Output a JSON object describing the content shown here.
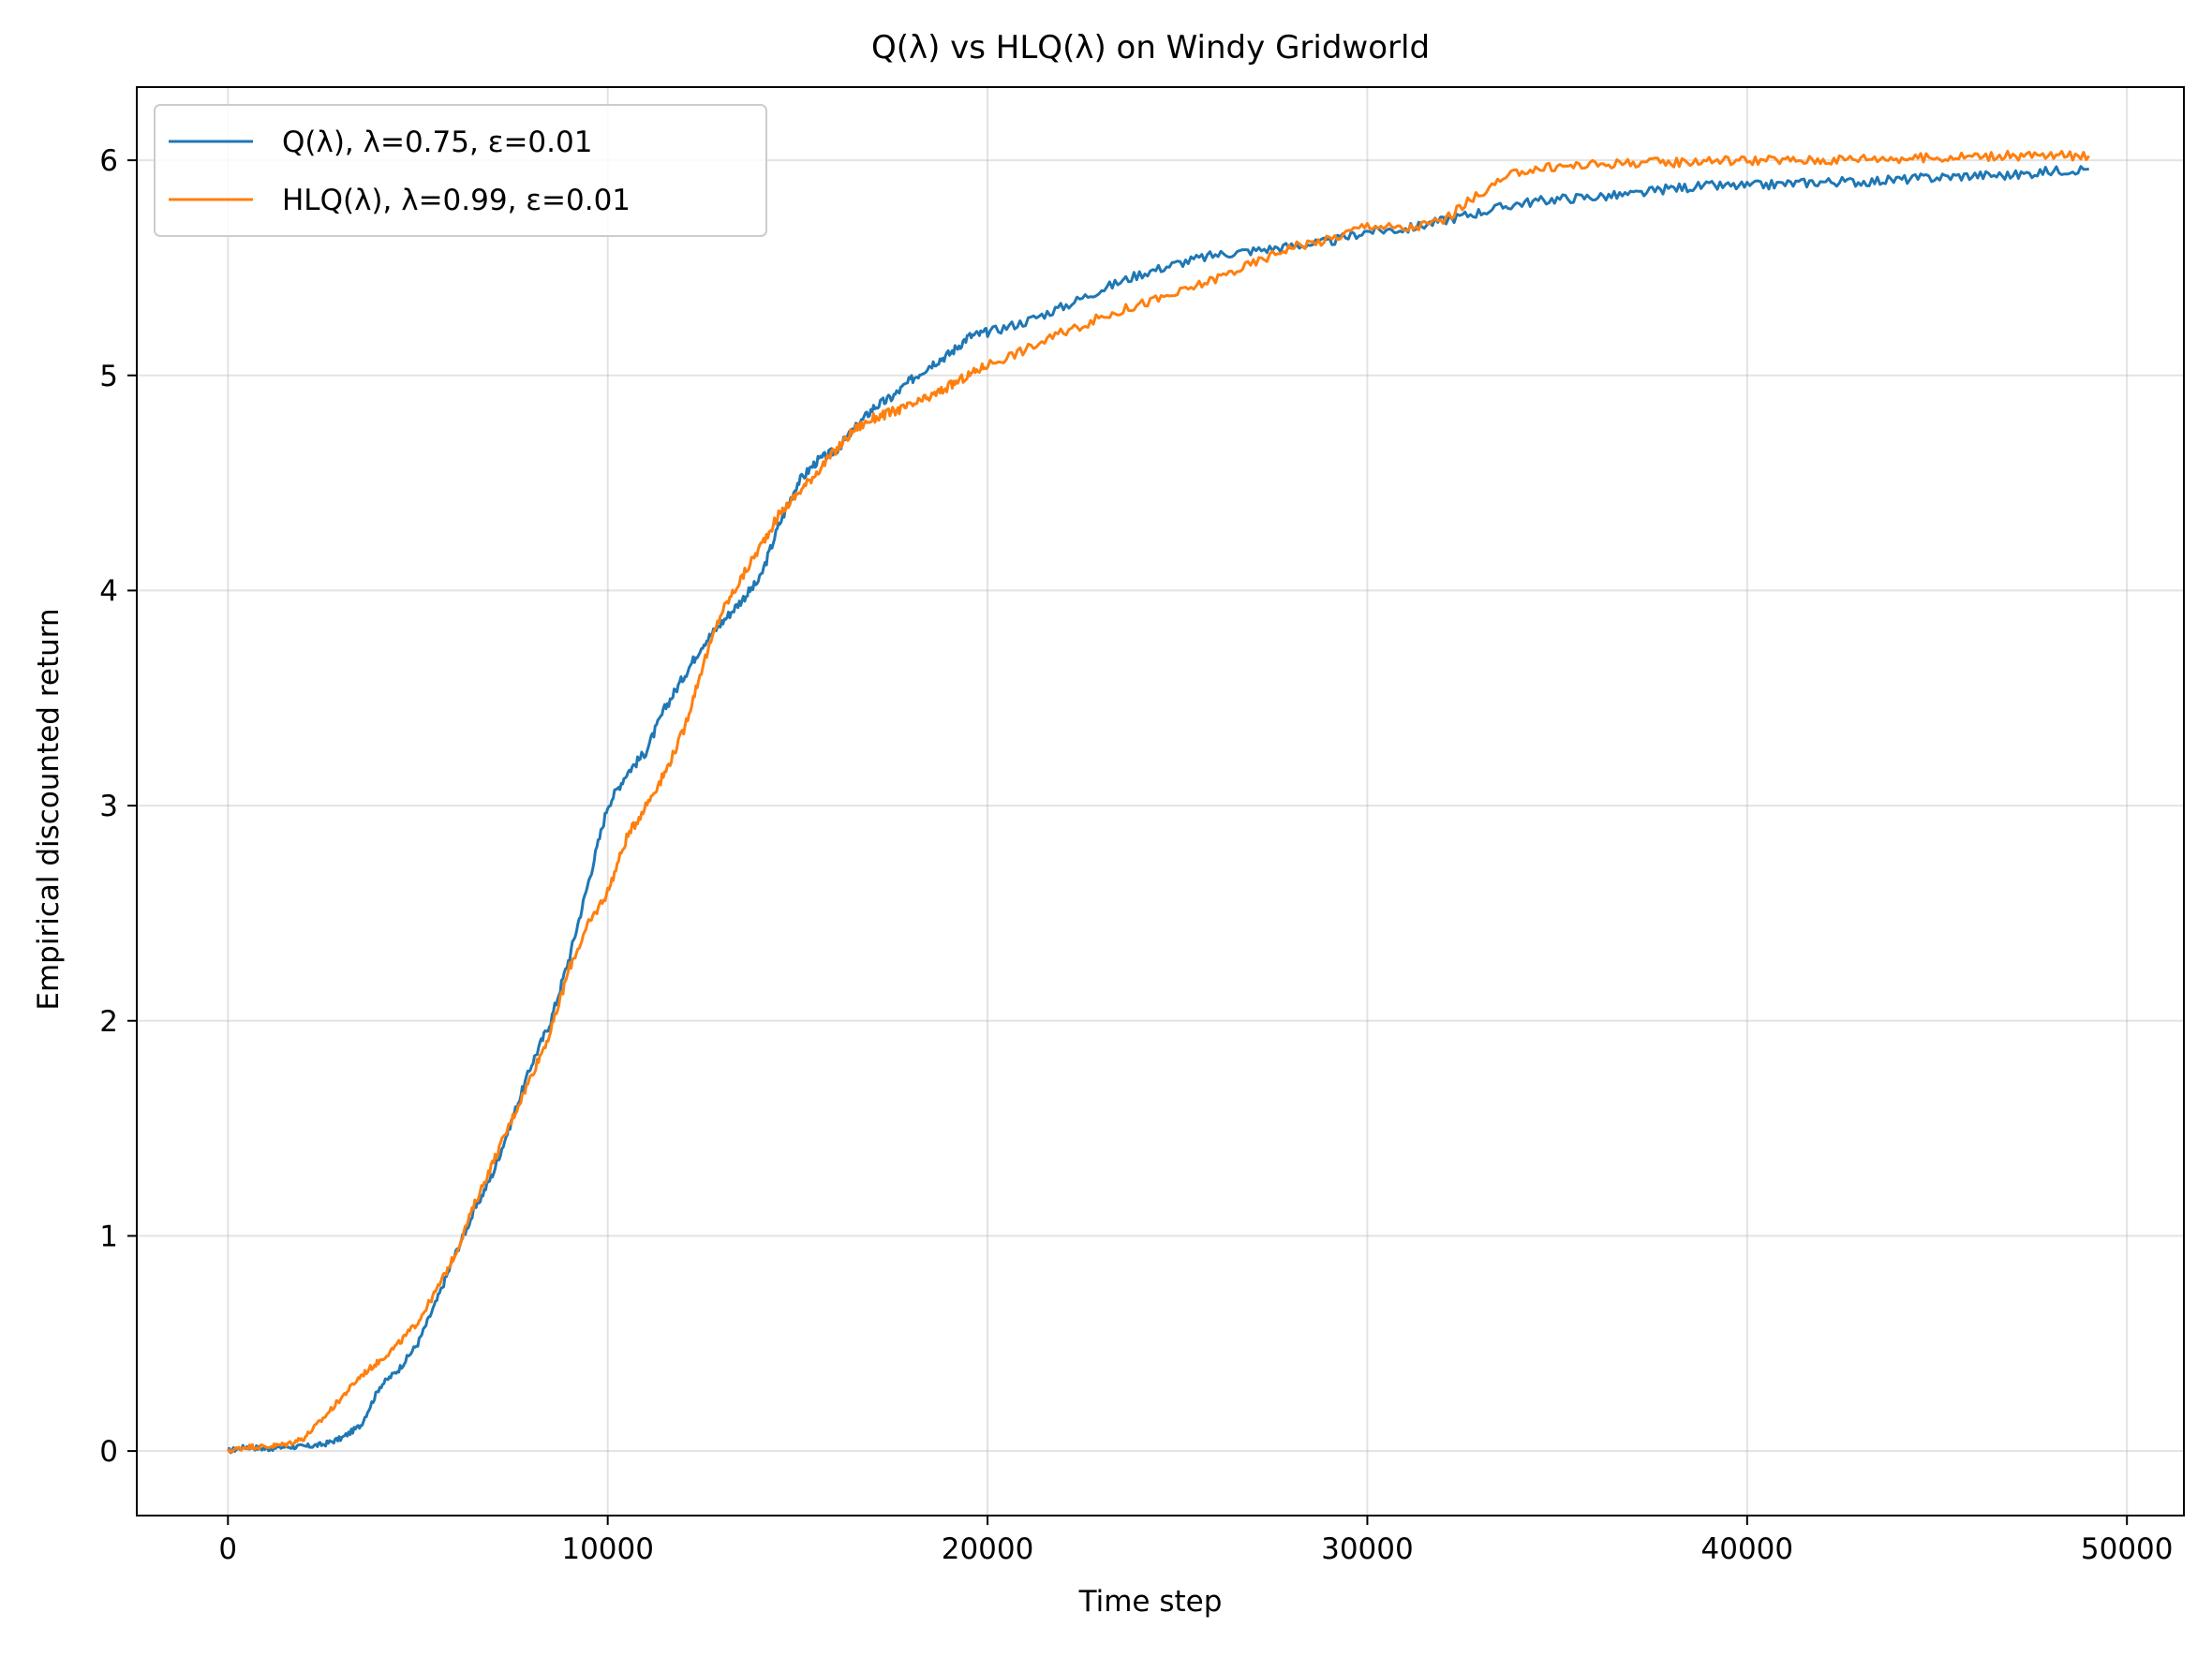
{
  "chart_data": {
    "type": "line",
    "title": "Q(λ) vs HLQ(λ) on Windy Gridworld",
    "xlabel": "Time step",
    "ylabel": "Empirical discounted return",
    "xlim": [
      -2400,
      51500
    ],
    "ylim": [
      -0.3,
      6.34
    ],
    "xticks": [
      0,
      10000,
      20000,
      30000,
      40000,
      50000
    ],
    "yticks": [
      0,
      1,
      2,
      3,
      4,
      5,
      6
    ],
    "grid": true,
    "legend_position": "top-left",
    "series": [
      {
        "name": "Q(λ), λ=0.75, ε=0.01",
        "color": "#1f77b4",
        "x": [
          0,
          500,
          1000,
          1500,
          2000,
          2500,
          3000,
          3500,
          4000,
          4500,
          5000,
          5500,
          6000,
          6500,
          7000,
          7500,
          8000,
          8500,
          9000,
          9500,
          10000,
          10500,
          11000,
          11500,
          12000,
          12500,
          13000,
          13500,
          14000,
          14500,
          15000,
          15500,
          16000,
          16500,
          17000,
          17500,
          18000,
          18500,
          19000,
          19500,
          20000,
          21000,
          22000,
          23000,
          24000,
          25000,
          26000,
          27000,
          28000,
          29000,
          30000,
          31000,
          32000,
          33000,
          34000,
          35000,
          36000,
          37000,
          38000,
          39000,
          40000,
          41000,
          42000,
          43000,
          44000,
          45000,
          46000,
          47000,
          48000,
          49000
        ],
        "y": [
          0.0,
          0.02,
          0.01,
          0.02,
          0.02,
          0.03,
          0.06,
          0.12,
          0.3,
          0.38,
          0.5,
          0.7,
          0.92,
          1.12,
          1.3,
          1.55,
          1.8,
          2.0,
          2.3,
          2.65,
          3.0,
          3.15,
          3.25,
          3.45,
          3.6,
          3.75,
          3.85,
          3.95,
          4.05,
          4.3,
          4.5,
          4.6,
          4.65,
          4.75,
          4.85,
          4.9,
          4.98,
          5.05,
          5.1,
          5.18,
          5.2,
          5.25,
          5.32,
          5.4,
          5.47,
          5.52,
          5.56,
          5.58,
          5.6,
          5.62,
          5.67,
          5.68,
          5.72,
          5.76,
          5.8,
          5.82,
          5.83,
          5.84,
          5.87,
          5.88,
          5.88,
          5.89,
          5.9,
          5.9,
          5.91,
          5.92,
          5.93,
          5.93,
          5.95,
          5.96
        ]
      },
      {
        "name": "HLQ(λ), λ=0.99, ε=0.01",
        "color": "#ff7f0e",
        "x": [
          0,
          500,
          1000,
          1500,
          2000,
          2500,
          3000,
          3500,
          4000,
          4500,
          5000,
          5500,
          6000,
          6500,
          7000,
          7500,
          8000,
          8500,
          9000,
          9500,
          10000,
          10500,
          11000,
          11500,
          12000,
          12500,
          13000,
          13500,
          14000,
          14500,
          15000,
          15500,
          16000,
          16500,
          17000,
          17500,
          18000,
          18500,
          19000,
          19500,
          20000,
          21000,
          22000,
          23000,
          24000,
          25000,
          26000,
          27000,
          28000,
          29000,
          30000,
          31000,
          32000,
          33000,
          34000,
          35000,
          36000,
          37000,
          38000,
          39000,
          40000,
          41000,
          42000,
          43000,
          44000,
          45000,
          46000,
          47000,
          48000,
          49000
        ],
        "y": [
          0.0,
          0.02,
          0.02,
          0.03,
          0.06,
          0.15,
          0.25,
          0.35,
          0.42,
          0.5,
          0.6,
          0.75,
          0.92,
          1.15,
          1.35,
          1.55,
          1.75,
          1.95,
          2.25,
          2.45,
          2.6,
          2.85,
          3.0,
          3.15,
          3.35,
          3.65,
          3.9,
          4.05,
          4.2,
          4.35,
          4.45,
          4.55,
          4.65,
          4.75,
          4.8,
          4.83,
          4.86,
          4.9,
          4.95,
          5.0,
          5.05,
          5.12,
          5.2,
          5.27,
          5.33,
          5.38,
          5.45,
          5.52,
          5.6,
          5.63,
          5.7,
          5.68,
          5.72,
          5.85,
          5.95,
          5.97,
          5.98,
          5.99,
          5.99,
          6.0,
          6.0,
          6.0,
          6.0,
          6.01,
          6.01,
          6.01,
          6.02,
          6.02,
          6.02,
          6.02
        ]
      }
    ]
  }
}
